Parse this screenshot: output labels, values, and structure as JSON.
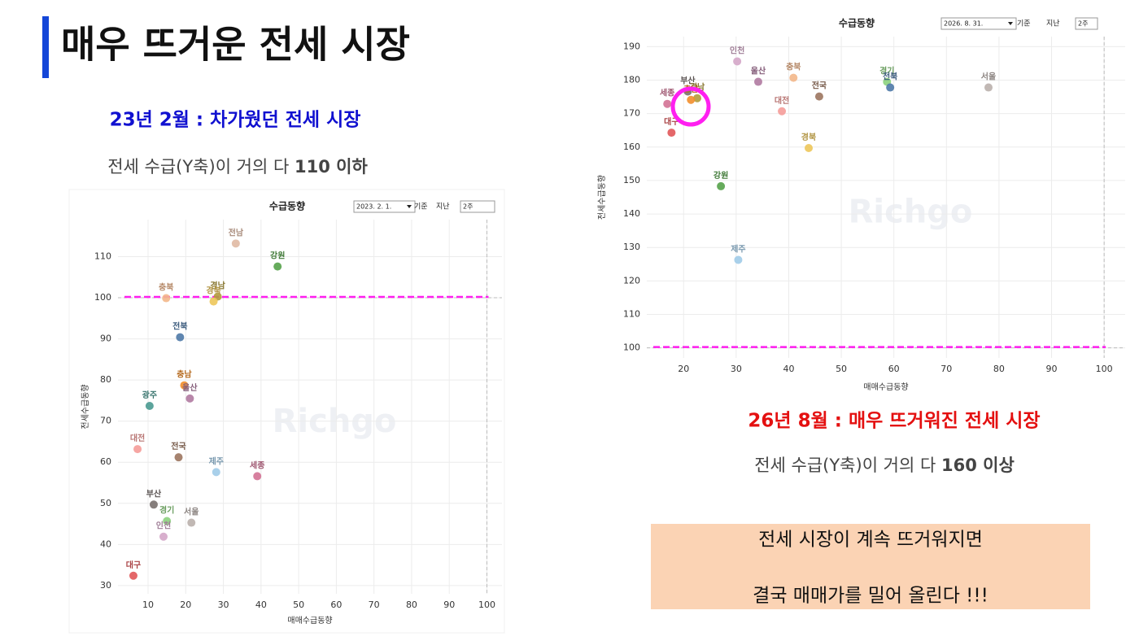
{
  "slide": {
    "title": "매우 뜨거운 전세 시장",
    "left_heading": "23년 2월 : 차가웠던 전세 시장",
    "left_note": "전세 수급(Y축)이 거의 다 ",
    "left_note_bold": "110 이하",
    "right_heading": "26년 8월 : 매우 뜨거워진 전세 시장",
    "right_note": "전세 수급(Y축)이 거의 다 ",
    "right_note_bold": "160 이상",
    "box_lines": [
      "전세 시장이 계속 뜨거워지면",
      "결국 매매가를 밀어 올린다 !!!"
    ]
  },
  "chart_data": [
    {
      "type": "scatter",
      "title": "수급동향",
      "date": "2023. 2. 1.",
      "basis": "기준",
      "period_label": "지난",
      "period": "2주",
      "xlabel": "매매수급동향",
      "ylabel": "전세수급동향",
      "watermark": "Richgo",
      "xlim": [
        2,
        104
      ],
      "ylim": [
        28,
        119
      ],
      "xticks": [
        10,
        20,
        30,
        40,
        50,
        60,
        70,
        80,
        90,
        100
      ],
      "yticks": [
        30,
        40,
        50,
        60,
        70,
        80,
        90,
        100,
        110
      ],
      "grid": true,
      "reference_y": 100,
      "reference_color": "#ff1ff0",
      "labels": [
        "전남",
        "강원",
        "충북",
        "경남",
        "경북",
        "전북",
        "충남",
        "울산",
        "광주",
        "대전",
        "전국",
        "제주",
        "세종",
        "부산",
        "경기",
        "서울",
        "인천",
        "대구"
      ],
      "x": [
        33.3,
        44.4,
        14.8,
        28.5,
        27.4,
        18.5,
        19.6,
        21.1,
        10.4,
        7.2,
        18.1,
        28.1,
        39.0,
        11.5,
        15.0,
        21.5,
        14.1,
        6.1
      ],
      "values": [
        113.2,
        107.6,
        99.9,
        100.3,
        99.1,
        90.4,
        78.7,
        75.5,
        73.7,
        63.2,
        61.2,
        57.6,
        56.6,
        49.7,
        45.7,
        45.3,
        41.9,
        32.4
      ],
      "colors": [
        "#e0b9a3",
        "#55a24a",
        "#f3b78a",
        "#b39b3c",
        "#edc75a",
        "#4e79a7",
        "#f28e2b",
        "#b07aa1",
        "#4a9a91",
        "#f59c99",
        "#9c755f",
        "#a0cbe8",
        "#d37295",
        "#79706e",
        "#8cd17d",
        "#bab0ac",
        "#d4a6c8",
        "#e15759"
      ]
    },
    {
      "type": "scatter",
      "title": "수급동향",
      "date": "2026. 8. 31.",
      "basis": "기준",
      "period_label": "지난",
      "period": "2주",
      "xlabel": "매매수급동향",
      "ylabel": "전세수급동향",
      "watermark": "Richgo",
      "xlim": [
        13,
        104
      ],
      "ylim": [
        97,
        193
      ],
      "xticks": [
        20,
        30,
        40,
        50,
        60,
        70,
        80,
        90,
        100
      ],
      "yticks": [
        100,
        110,
        120,
        130,
        140,
        150,
        160,
        170,
        180,
        190
      ],
      "grid": true,
      "reference_y": 100,
      "reference_color": "#ff1ff0",
      "labels": [
        "인천",
        "울산",
        "충북",
        "경기",
        "전북",
        "서울",
        "부산",
        "세종",
        "경남",
        "충남",
        "전국",
        "대전",
        "대구",
        "경북",
        "강원",
        "제주"
      ],
      "x": [
        30.2,
        34.2,
        40.9,
        58.7,
        59.3,
        78.0,
        20.8,
        16.9,
        22.6,
        21.4,
        45.8,
        38.7,
        17.7,
        43.8,
        27.1,
        30.4
      ],
      "values": [
        185.6,
        179.5,
        180.7,
        179.5,
        177.8,
        177.8,
        176.6,
        172.9,
        174.6,
        174.1,
        175.1,
        170.7,
        164.3,
        159.7,
        148.3,
        126.3
      ],
      "colors": [
        "#d4a6c8",
        "#b07aa1",
        "#f3b78a",
        "#8cd17d",
        "#4e79a7",
        "#bab0ac",
        "#79706e",
        "#d37295",
        "#b39b3c",
        "#f28e2b",
        "#9c755f",
        "#f59c99",
        "#e15759",
        "#edc75a",
        "#55a24a",
        "#a0cbe8"
      ]
    }
  ]
}
